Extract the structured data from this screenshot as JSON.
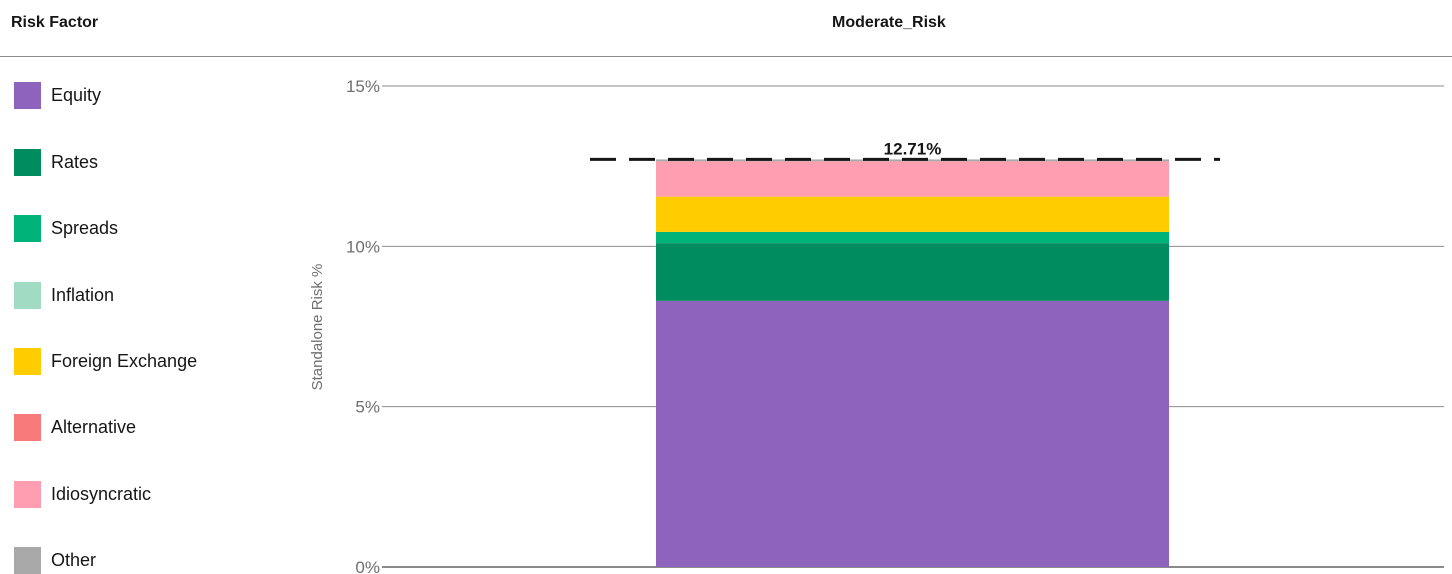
{
  "legend": {
    "title": "Risk Factor",
    "items": [
      {
        "label": "Equity",
        "color": "#8e63be"
      },
      {
        "label": "Rates",
        "color": "#008c5e"
      },
      {
        "label": "Spreads",
        "color": "#00b378"
      },
      {
        "label": "Inflation",
        "color": "#a1dbc3"
      },
      {
        "label": "Foreign Exchange",
        "color": "#ffcc00"
      },
      {
        "label": "Alternative",
        "color": "#f7797a"
      },
      {
        "label": "Idiosyncratic",
        "color": "#ff9db1"
      },
      {
        "label": "Other",
        "color": "#a8a8a8"
      }
    ]
  },
  "chart_data": {
    "type": "bar",
    "stacked": true,
    "title": "Moderate_Risk",
    "ylabel": "Standalone Risk %",
    "xlabel": "",
    "categories": [
      "Moderate_Risk"
    ],
    "ylim": [
      0,
      15
    ],
    "yticks": [
      0,
      5,
      10,
      15
    ],
    "ytick_labels": [
      "0%",
      "5%",
      "10%",
      "15%"
    ],
    "grid": true,
    "series": [
      {
        "name": "Equity",
        "values": [
          8.3
        ],
        "color": "#8e63be"
      },
      {
        "name": "Rates",
        "values": [
          1.8
        ],
        "color": "#008c5e"
      },
      {
        "name": "Spreads",
        "values": [
          0.35
        ],
        "color": "#00b378"
      },
      {
        "name": "Inflation",
        "values": [
          0.0
        ],
        "color": "#a1dbc3"
      },
      {
        "name": "Foreign Exchange",
        "values": [
          1.1
        ],
        "color": "#ffcc00"
      },
      {
        "name": "Alternative",
        "values": [
          0.0
        ],
        "color": "#f7797a"
      },
      {
        "name": "Idiosyncratic",
        "values": [
          1.1
        ],
        "color": "#ff9db1"
      },
      {
        "name": "Other",
        "values": [
          0.06
        ],
        "color": "#a8a8a8"
      }
    ],
    "total": {
      "value": 12.71,
      "label": "12.71%"
    }
  }
}
